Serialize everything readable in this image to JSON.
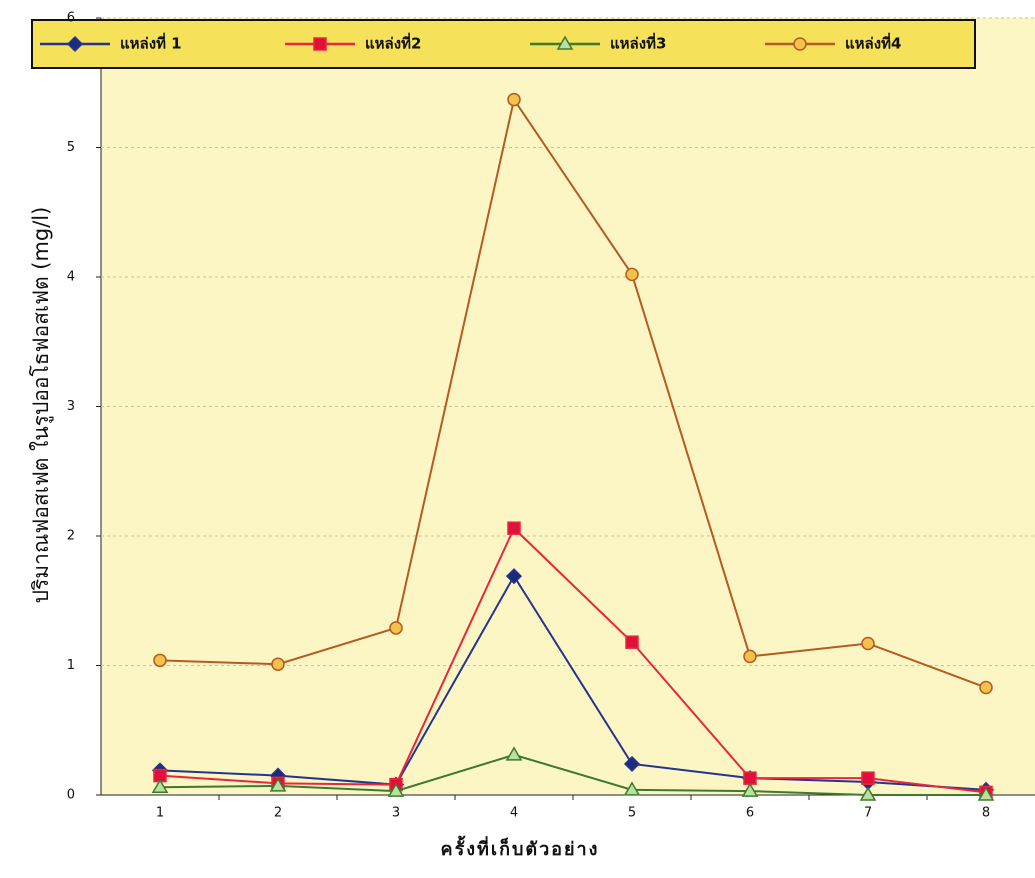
{
  "chart_data": {
    "type": "line",
    "x_label": "ครั้งที่เก็บตัวอย่าง",
    "y_label": "ปริมาณฟอสเฟต ในรูปออโธฟอสเฟต (mg/l)",
    "categories": [
      "1",
      "2",
      "3",
      "4",
      "5",
      "6",
      "7",
      "8"
    ],
    "series": [
      {
        "name": "แหล่งที่ 1",
        "color": "#25348c",
        "marker": "diamond",
        "marker_color": "#1c2a80",
        "values": [
          0.19,
          0.15,
          0.08,
          1.69,
          0.24,
          0.13,
          0.1,
          0.04
        ]
      },
      {
        "name": "แหล่งที่2",
        "color": "#e8273f",
        "marker": "square",
        "marker_color": "#e0103a",
        "values": [
          0.15,
          0.09,
          0.08,
          2.06,
          1.18,
          0.13,
          0.13,
          0.02
        ]
      },
      {
        "name": "แหล่งที่3",
        "color": "#3d7a2c",
        "marker": "triangle",
        "marker_color": "#b8e0a0",
        "values": [
          0.06,
          0.07,
          0.03,
          0.31,
          0.04,
          0.03,
          0.0,
          0.0
        ]
      },
      {
        "name": "แหล่งที่4",
        "color": "#b65a22",
        "marker": "circle",
        "marker_color": "#f2c24a",
        "values": [
          1.04,
          1.01,
          1.29,
          5.37,
          4.02,
          1.07,
          1.17,
          0.83
        ]
      }
    ],
    "ylim": [
      0,
      6
    ],
    "yticks": [
      0,
      1,
      2,
      3,
      4,
      5,
      6
    ],
    "grid": true,
    "legend": "top"
  }
}
